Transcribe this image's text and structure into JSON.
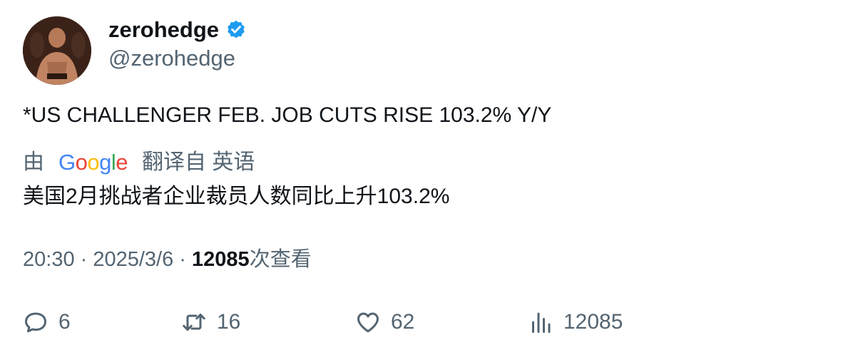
{
  "user": {
    "display_name": "zerohedge",
    "handle": "@zerohedge",
    "verified": true,
    "verified_color": "#1d9bf0"
  },
  "tweet": {
    "text": "*US CHALLENGER FEB. JOB CUTS RISE 103.2% Y/Y",
    "translation_prefix": "由",
    "translation_source": "Google",
    "translation_suffix": "翻译自 英语",
    "translated_text": "美国2月挑战者企业裁员人数同比上升103.2%"
  },
  "meta": {
    "time": "20:30",
    "separator1": " · ",
    "date": "2025/3/6",
    "separator2": " · ",
    "views_count": "12085",
    "views_label": "次查看"
  },
  "actions": {
    "reply_count": "6",
    "retweet_count": "16",
    "like_count": "62",
    "views_count": "12085"
  }
}
